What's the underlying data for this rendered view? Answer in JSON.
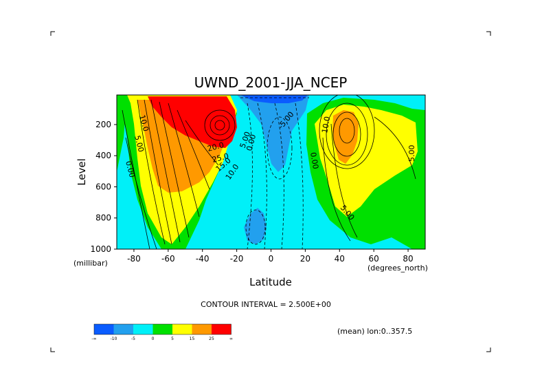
{
  "chart_data": {
    "type": "contour",
    "title": "UWND_2001-JJA_NCEP",
    "xlabel": "Latitude",
    "ylabel": "Level",
    "x_units": "(degrees_north)",
    "y_units": "(millibar)",
    "xlim": [
      -90,
      90
    ],
    "ylim": [
      1000,
      10
    ],
    "x_ticks": [
      -80,
      -60,
      -40,
      -20,
      0,
      20,
      40,
      60,
      80
    ],
    "y_ticks": [
      200,
      400,
      600,
      800,
      1000
    ],
    "contour_interval_text": "CONTOUR INTERVAL = 2.500E+00",
    "footnote": "(mean) lon:0..357.5",
    "colorbar": {
      "colors": [
        "#0a5cff",
        "#22a0ee",
        "#00f0f8",
        "#00e000",
        "#ffff00",
        "#ff9900",
        "#ff0000"
      ],
      "tick_labels": [
        "-∞",
        "-10",
        "-5",
        "0",
        "5",
        "15",
        "25",
        "∞"
      ]
    },
    "contour_labels": [
      {
        "text": "10.0",
        "lat": -78,
        "lev": 200
      },
      {
        "text": "5.00",
        "lat": -85,
        "lev": 310
      },
      {
        "text": "0.00",
        "lat": -88,
        "lev": 470
      },
      {
        "text": "20.0",
        "lat": -30,
        "lev": 330
      },
      {
        "text": "25.0",
        "lat": -35,
        "lev": 390
      },
      {
        "text": "15.0",
        "lat": -26,
        "lev": 420
      },
      {
        "text": "10.0",
        "lat": -20,
        "lev": 500
      },
      {
        "text": "5.00",
        "lat": -12,
        "lev": 320
      },
      {
        "text": "0.00",
        "lat": -16,
        "lev": 320
      },
      {
        "text": "-5.00",
        "lat": 15,
        "lev": 140
      },
      {
        "text": "0.00",
        "lat": 23,
        "lev": 290
      },
      {
        "text": "10.0",
        "lat": 35,
        "lev": 200
      },
      {
        "text": "5.00",
        "lat": 80,
        "lev": 340
      },
      {
        "text": "5.00",
        "lat": 43,
        "lev": 730
      }
    ]
  }
}
